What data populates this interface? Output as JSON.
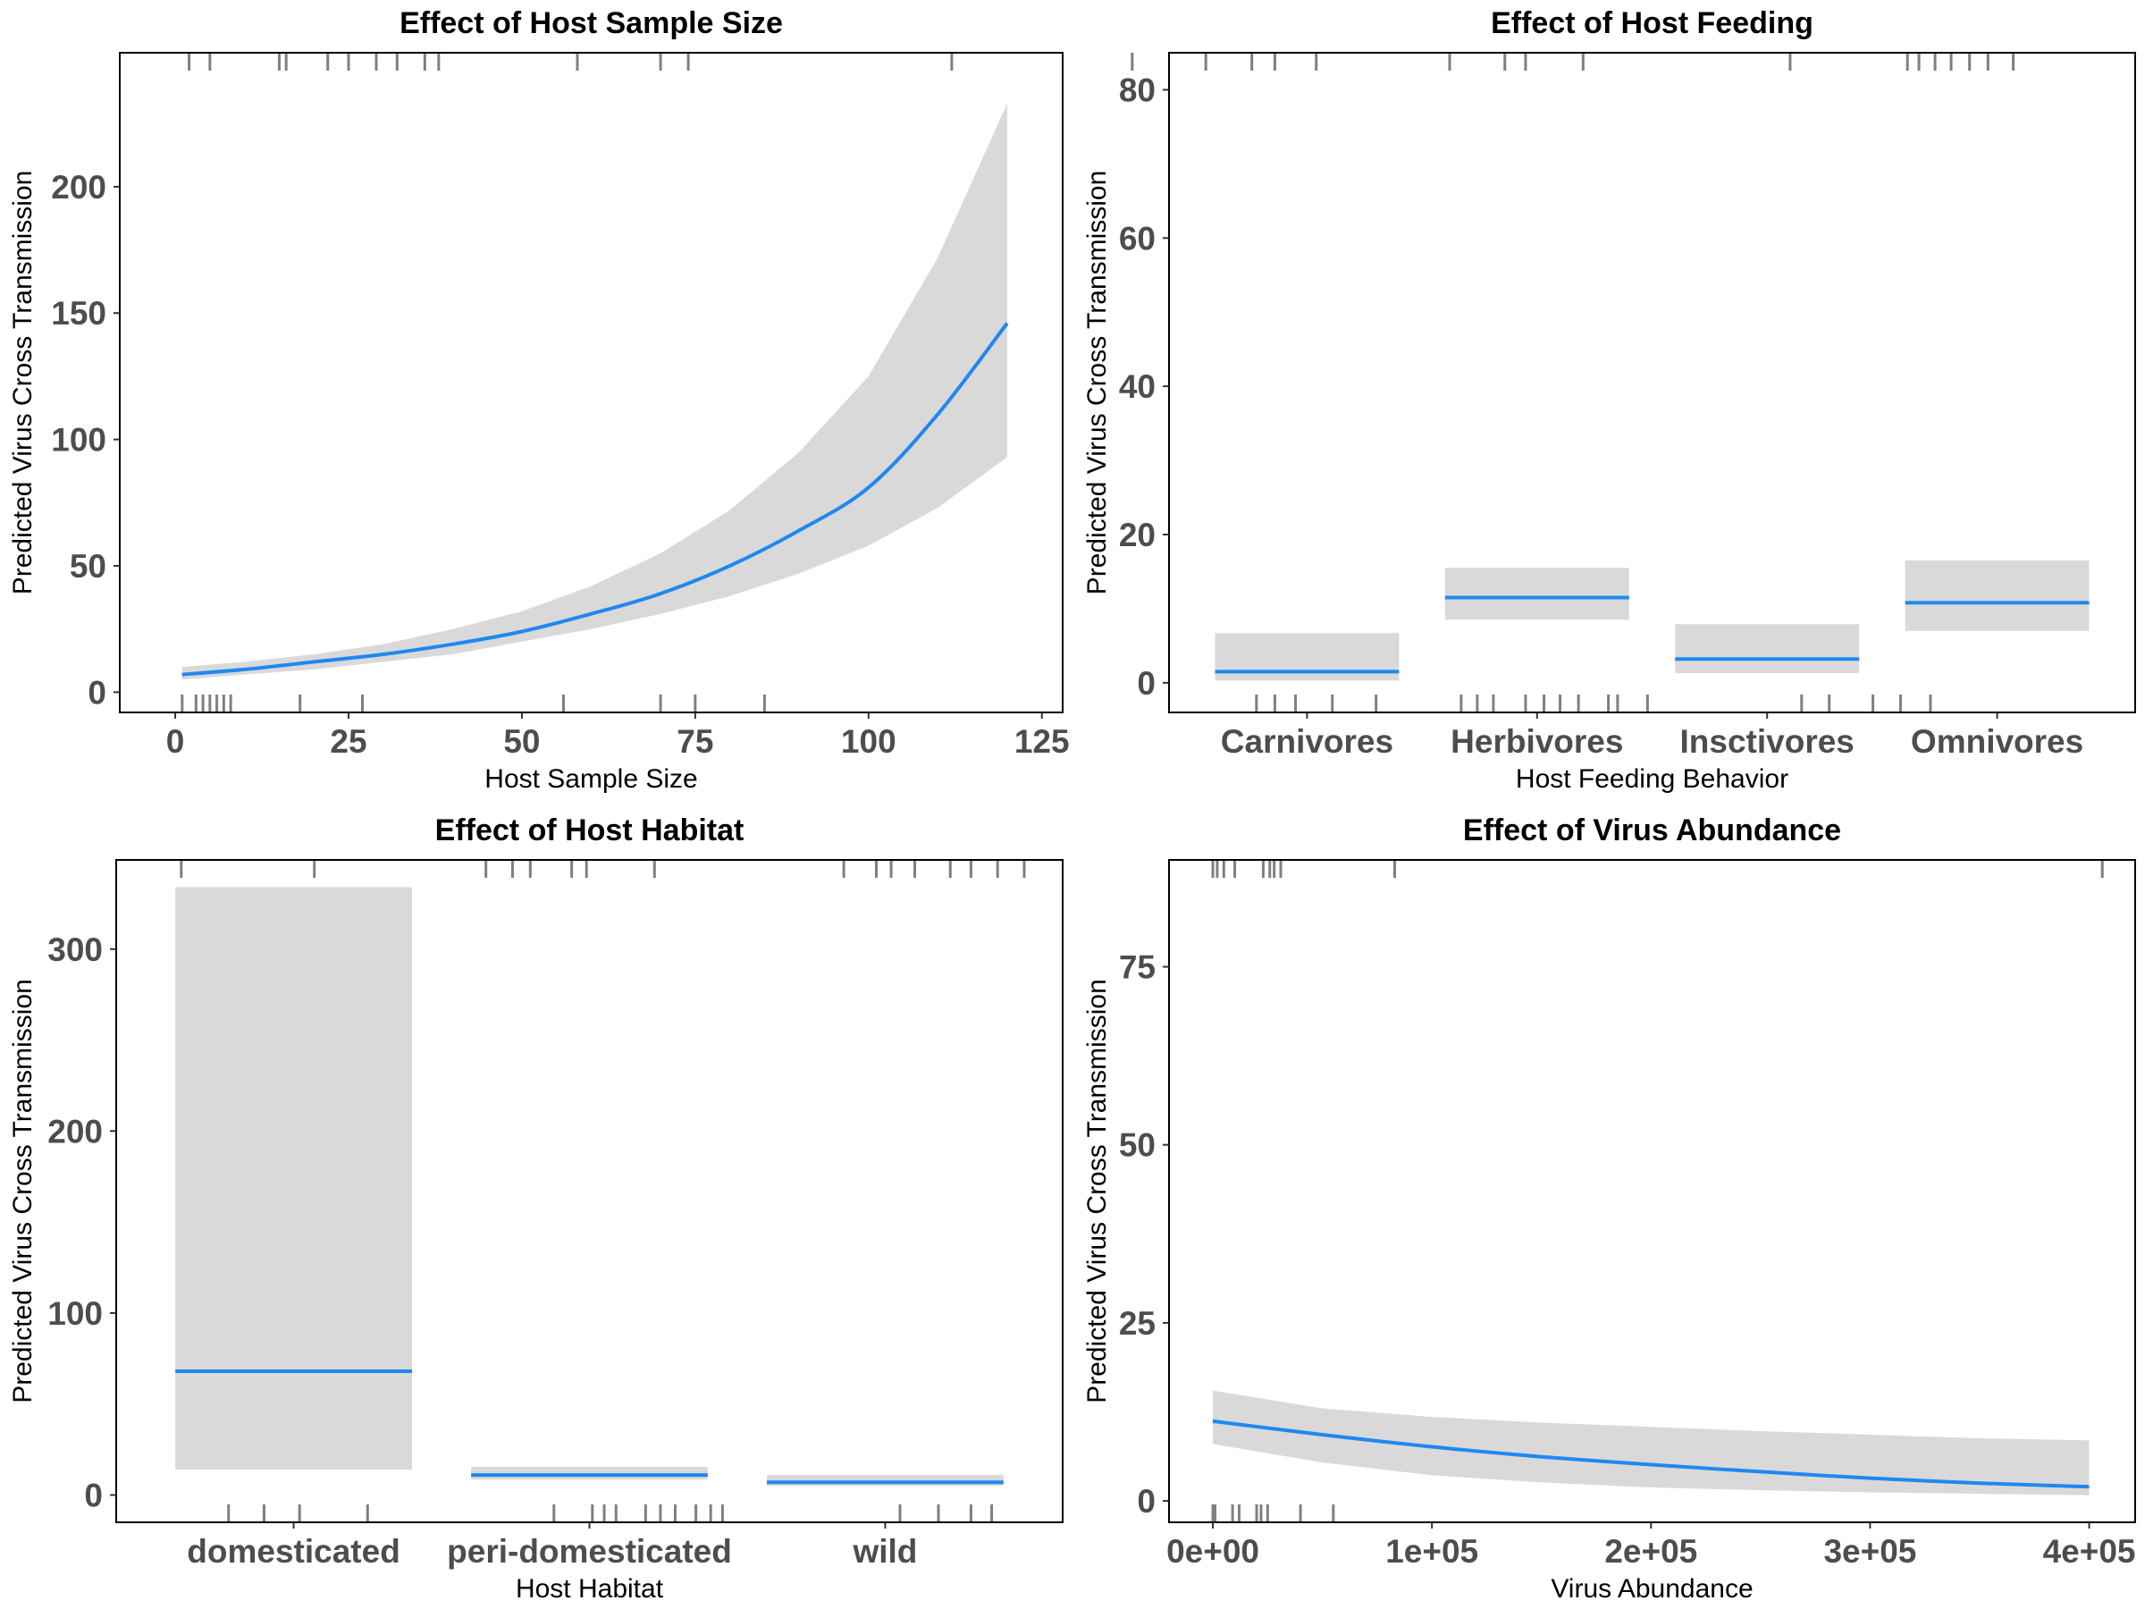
{
  "chart_data": [
    {
      "type": "line",
      "title": "Effect of Host Sample Size",
      "xlabel": "Host Sample Size",
      "ylabel": "Predicted Virus Cross Transmission",
      "xlim": [
        -8,
        128
      ],
      "ylim": [
        -8,
        253
      ],
      "xticks": [
        0,
        25,
        50,
        75,
        100,
        125
      ],
      "yticks": [
        0,
        50,
        100,
        150,
        200
      ],
      "xtick_labels": [
        "0",
        "25",
        "50",
        "75",
        "100",
        "125"
      ],
      "ytick_labels": [
        "0",
        "50",
        "100",
        "150",
        "200"
      ],
      "x": [
        1,
        10,
        20,
        30,
        40,
        50,
        60,
        70,
        80,
        90,
        100,
        110,
        120
      ],
      "y": [
        7,
        9,
        12,
        15,
        19,
        24,
        31,
        39,
        50,
        64,
        81,
        110,
        146
      ],
      "lower": [
        5,
        7,
        9,
        12,
        15,
        20,
        25,
        31,
        38,
        47,
        58,
        73,
        93
      ],
      "upper": [
        10,
        12,
        15,
        19,
        25,
        32,
        42,
        55,
        72,
        95,
        125,
        172,
        233
      ],
      "rug_top": [
        2,
        5,
        15,
        16,
        22,
        25,
        29,
        32,
        36,
        38,
        58,
        70,
        74,
        112
      ],
      "rug_bottom": [
        1,
        3,
        4,
        5,
        6,
        7,
        8,
        18,
        27,
        56,
        70,
        75,
        85
      ]
    },
    {
      "type": "bar",
      "title": "Effect of Host Feeding",
      "xlabel": "Host Feeding Behavior",
      "ylabel": "Predicted Virus Cross Transmission",
      "categories": [
        "Carnivores",
        "Herbivores",
        "Insctivores",
        "Omnivores"
      ],
      "values": [
        1.5,
        11.5,
        3.2,
        10.8
      ],
      "lower": [
        0.3,
        8.5,
        1.3,
        7.0
      ],
      "upper": [
        6.7,
        15.5,
        7.9,
        16.5
      ],
      "ylim": [
        -4,
        85
      ],
      "yticks": [
        0,
        20,
        40,
        60,
        80
      ],
      "ytick_labels": [
        "0",
        "20",
        "40",
        "60",
        "80"
      ],
      "rug_top": [
        0.24,
        0.56,
        0.76,
        0.86,
        1.04,
        1.62,
        1.86,
        1.95,
        2.2,
        3.1,
        3.61,
        3.66,
        3.73,
        3.8,
        3.88,
        3.96,
        4.07
      ],
      "rug_bottom": [
        0.78,
        0.86,
        0.95,
        1.11,
        1.3,
        1.67,
        1.74,
        1.81,
        1.95,
        2.03,
        2.1,
        2.18,
        2.31,
        2.35,
        2.48,
        3.15,
        3.27,
        3.46,
        3.58,
        3.71
      ]
    },
    {
      "type": "bar",
      "title": "Effect of Host Habitat",
      "xlabel": "Host Habitat",
      "ylabel": "Predicted Virus Cross Transmission",
      "categories": [
        "domesticated",
        "peri-domesticated",
        "wild"
      ],
      "values": [
        68,
        11,
        7
      ],
      "lower": [
        14,
        8.5,
        5
      ],
      "upper": [
        334,
        15.5,
        11
      ],
      "ylim": [
        -15,
        349
      ],
      "yticks": [
        0,
        100,
        200,
        300
      ],
      "ytick_labels": [
        "0",
        "100",
        "200",
        "300"
      ],
      "rug_top": [
        0.62,
        1.07,
        1.65,
        1.74,
        1.8,
        1.94,
        1.99,
        2.22,
        2.86,
        2.97,
        3.02,
        3.1,
        3.22,
        3.29,
        3.38,
        3.47
      ],
      "rug_bottom": [
        0.78,
        0.9,
        1.02,
        1.25,
        1.88,
        2.01,
        2.05,
        2.09,
        2.19,
        2.24,
        2.29,
        2.36,
        2.41,
        2.45,
        3.05,
        3.18,
        3.29,
        3.36
      ]
    },
    {
      "type": "line",
      "title": "Effect of Virus Abundance",
      "xlabel": "Virus Abundance",
      "ylabel": "Predicted Virus Cross Transmission",
      "xlim": [
        -20000,
        421000
      ],
      "ylim": [
        -3,
        90
      ],
      "xticks": [
        0,
        100000,
        200000,
        300000,
        400000
      ],
      "yticks": [
        0,
        25,
        50,
        75
      ],
      "xtick_labels": [
        "0e+00",
        "1e+05",
        "2e+05",
        "3e+05",
        "4e+05"
      ],
      "ytick_labels": [
        "0",
        "25",
        "50",
        "75"
      ],
      "x": [
        0,
        50000,
        100000,
        150000,
        200000,
        250000,
        300000,
        350000,
        400000
      ],
      "y": [
        11.2,
        9.3,
        7.6,
        6.2,
        5.1,
        4.1,
        3.2,
        2.5,
        2.0
      ],
      "lower": [
        8.0,
        5.4,
        3.6,
        2.6,
        1.9,
        1.5,
        1.2,
        1.0,
        0.8
      ],
      "upper": [
        15.5,
        13.0,
        11.8,
        11.0,
        10.4,
        9.8,
        9.3,
        8.8,
        8.5
      ],
      "rug_top": [
        0,
        2000,
        5000,
        10000,
        23000,
        26000,
        28000,
        31000,
        83000,
        406000
      ],
      "rug_bottom": [
        0,
        1000,
        9000,
        12000,
        20000,
        22000,
        25000,
        40000,
        55000
      ]
    }
  ]
}
